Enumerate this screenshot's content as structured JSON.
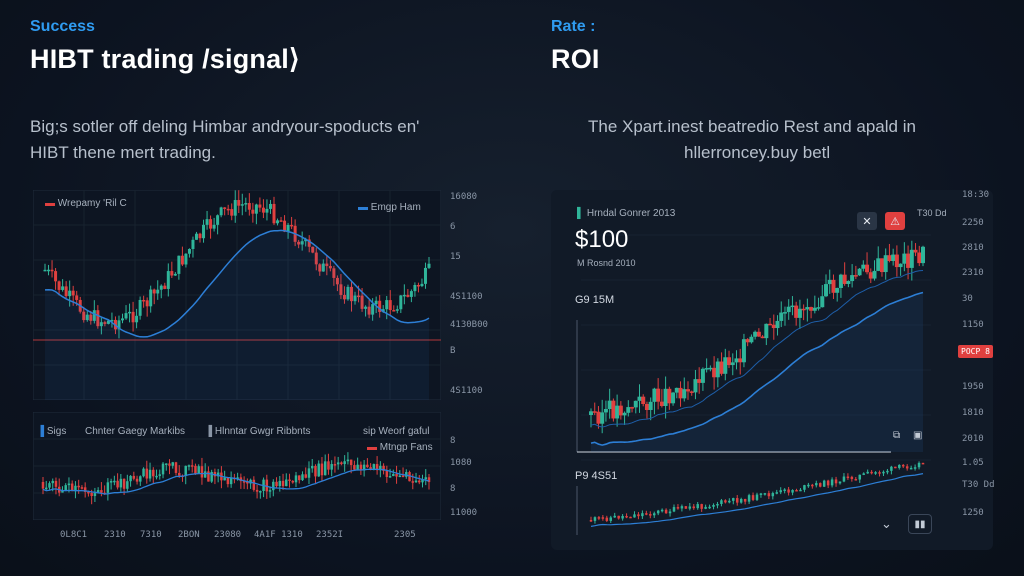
{
  "left": {
    "eyebrow": "Success",
    "title": "HIBT trading /signal⟩",
    "subtitle_line1": "Big;s sotler off deling Himbar andryour-spoducts en'",
    "subtitle_line2": "HIBT thene mert trading.",
    "top_chart": {
      "legend_left": "Wrepamy 'Ril C",
      "legend_right": "Emgp Ham",
      "price_ticks": [
        "16080",
        "6",
        "15",
        "4S1100",
        "4130B00",
        "B",
        "4S1100"
      ]
    },
    "bottom_chart": {
      "toolbar_items": [
        "Sigs",
        "Chnter Gaegy Markibs",
        "Hlnntar Gwgr Ribbnts",
        "sip Weorf gaful",
        "Mtngp Fans"
      ],
      "price_ticks": [
        "8",
        "1080",
        "8",
        "11000"
      ],
      "time_ticks": [
        "0L8C1",
        "2310",
        "7310",
        "2BON",
        "23080",
        "4A1F 1310",
        "2352I",
        "2305"
      ]
    }
  },
  "right": {
    "eyebrow": "Rate :",
    "title": "ROI",
    "subtitle_line1": "The Xpart.inest beatredio Rest and apald in",
    "subtitle_line2": "hllerroncey.buy betl",
    "panel": {
      "legend": "Hrndal Gonrer 2013",
      "big_value": "$100",
      "small_caption": "M Rosnd 2010",
      "sub_value": "G9 15M",
      "header_value": "T30 Dd",
      "lower_value": "P9 4S51",
      "badge": "POCP 8"
    },
    "side_ticks": [
      "18:30",
      "T30 Dd",
      "2250",
      "2810",
      "2310",
      "30",
      "1150",
      "1250",
      "1950",
      "1810",
      "2010",
      "1.05"
    ]
  },
  "icons": [
    "close-icon",
    "alert-icon",
    "expand-icon",
    "chevron-down-icon",
    "pause-icon"
  ],
  "colors": {
    "accent": "#2f9bf0",
    "bull": "#2fb59a",
    "bear": "#e0403f",
    "ma": "#2d7fd6"
  }
}
